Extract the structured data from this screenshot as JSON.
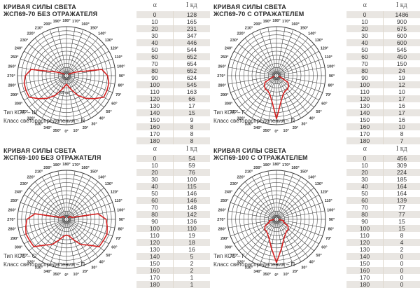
{
  "charts": [
    {
      "title_line1": "КРИВАЯ СИЛЫ СВЕТА",
      "title_line2": "ЖСП69-70 БЕЗ ОТРАЖАТЕЛЯ",
      "kss_type": "Тип КСС – Ш",
      "light_class": "Класс светораспределения – Н",
      "col_alpha": "α",
      "col_intensity": "I кд",
      "scale_label": "650 кд",
      "curve_color": "#d42020",
      "rows": [
        [
          0,
          128
        ],
        [
          10,
          165
        ],
        [
          20,
          231
        ],
        [
          30,
          347
        ],
        [
          40,
          446
        ],
        [
          50,
          544
        ],
        [
          60,
          652
        ],
        [
          70,
          654
        ],
        [
          80,
          652
        ],
        [
          90,
          624
        ],
        [
          100,
          545
        ],
        [
          110,
          163
        ],
        [
          120,
          66
        ],
        [
          130,
          17
        ],
        [
          140,
          15
        ],
        [
          150,
          9
        ],
        [
          160,
          8
        ],
        [
          170,
          8
        ],
        [
          180,
          8
        ]
      ]
    },
    {
      "title_line1": "КРИВАЯ СИЛЫ СВЕТА",
      "title_line2": "ЖСП69-70 С ОТРАЖАТЕЛЕМ",
      "kss_type": "Тип КСС – Г",
      "light_class": "Класс светораспределения – П",
      "col_alpha": "α",
      "col_intensity": "I кд",
      "scale_label": "",
      "curve_color": "#d42020",
      "rows": [
        [
          0,
          1486
        ],
        [
          10,
          900
        ],
        [
          20,
          675
        ],
        [
          30,
          600
        ],
        [
          40,
          600
        ],
        [
          50,
          545
        ],
        [
          60,
          450
        ],
        [
          70,
          150
        ],
        [
          80,
          24
        ],
        [
          90,
          19
        ],
        [
          100,
          12
        ],
        [
          110,
          10
        ],
        [
          120,
          17
        ],
        [
          130,
          16
        ],
        [
          140,
          17
        ],
        [
          150,
          16
        ],
        [
          160,
          10
        ],
        [
          170,
          8
        ],
        [
          180,
          7
        ]
      ]
    },
    {
      "title_line1": "КРИВАЯ СИЛЫ СВЕТА",
      "title_line2": "ЖСП69-100 БЕЗ ОТРАЖАТЕЛЯ",
      "kss_type": "Тип КСС – С",
      "light_class": "Класс светораспределения – П",
      "col_alpha": "α",
      "col_intensity": "I кд",
      "scale_label": "",
      "curve_color": "#d42020",
      "rows": [
        [
          0,
          54
        ],
        [
          10,
          59
        ],
        [
          20,
          76
        ],
        [
          30,
          100
        ],
        [
          40,
          115
        ],
        [
          50,
          146
        ],
        [
          60,
          146
        ],
        [
          70,
          148
        ],
        [
          80,
          142
        ],
        [
          90,
          136
        ],
        [
          100,
          110
        ],
        [
          110,
          19
        ],
        [
          120,
          18
        ],
        [
          130,
          16
        ],
        [
          140,
          5
        ],
        [
          150,
          2
        ],
        [
          160,
          2
        ],
        [
          170,
          1
        ],
        [
          180,
          1
        ]
      ]
    },
    {
      "title_line1": "КРИВАЯ СИЛЫ СВЕТА",
      "title_line2": "ЖСП69-100 С ОТРАЖАТЕЛЕМ",
      "kss_type": "Тип КСС – Г",
      "light_class": "Класс светораспределения – П",
      "col_alpha": "α",
      "col_intensity": "I кд",
      "scale_label": "",
      "curve_color": "#d42020",
      "rows": [
        [
          0,
          456
        ],
        [
          10,
          309
        ],
        [
          20,
          224
        ],
        [
          30,
          185
        ],
        [
          40,
          164
        ],
        [
          50,
          164
        ],
        [
          60,
          139
        ],
        [
          70,
          77
        ],
        [
          80,
          77
        ],
        [
          90,
          15
        ],
        [
          100,
          15
        ],
        [
          110,
          8
        ],
        [
          120,
          4
        ],
        [
          130,
          2
        ],
        [
          140,
          0
        ],
        [
          150,
          0
        ],
        [
          160,
          0
        ],
        [
          170,
          0
        ],
        [
          180,
          0
        ]
      ]
    }
  ],
  "polar_angle_labels": [
    "0°",
    "10°",
    "20°",
    "30°",
    "40°",
    "50°",
    "60°",
    "70°",
    "80°",
    "90°",
    "100°",
    "110°",
    "120°",
    "130°",
    "140°",
    "150°",
    "160°",
    "170°",
    "180°",
    "190°",
    "200°",
    "210°",
    "220°",
    "230°",
    "240°",
    "250°",
    "260°",
    "270°",
    "280°",
    "290°",
    "300°",
    "310°",
    "320°",
    "330°",
    "340°",
    "350°"
  ],
  "chart_data": [
    {
      "type": "polar-line",
      "title": "КРИВАЯ СИЛЫ СВЕТА ЖСП69-70 БЕЗ ОТРАЖАТЕЛЯ",
      "x": [
        0,
        10,
        20,
        30,
        40,
        50,
        60,
        70,
        80,
        90,
        100,
        110,
        120,
        130,
        140,
        150,
        160,
        170,
        180
      ],
      "values": [
        128,
        165,
        231,
        347,
        446,
        544,
        652,
        654,
        652,
        624,
        545,
        163,
        66,
        17,
        15,
        9,
        8,
        8,
        8
      ],
      "xlabel": "α",
      "ylabel": "I кд",
      "grid": true
    },
    {
      "type": "polar-line",
      "title": "КРИВАЯ СИЛЫ СВЕТА ЖСП69-70 С ОТРАЖАТЕЛЕМ",
      "x": [
        0,
        10,
        20,
        30,
        40,
        50,
        60,
        70,
        80,
        90,
        100,
        110,
        120,
        130,
        140,
        150,
        160,
        170,
        180
      ],
      "values": [
        1486,
        900,
        675,
        600,
        600,
        545,
        450,
        150,
        24,
        19,
        12,
        10,
        17,
        16,
        17,
        16,
        10,
        8,
        7
      ],
      "xlabel": "α",
      "ylabel": "I кд",
      "grid": true
    },
    {
      "type": "polar-line",
      "title": "КРИВАЯ СИЛЫ СВЕТА ЖСП69-100 БЕЗ ОТРАЖАТЕЛЯ",
      "x": [
        0,
        10,
        20,
        30,
        40,
        50,
        60,
        70,
        80,
        90,
        100,
        110,
        120,
        130,
        140,
        150,
        160,
        170,
        180
      ],
      "values": [
        54,
        59,
        76,
        100,
        115,
        146,
        146,
        148,
        142,
        136,
        110,
        19,
        18,
        16,
        5,
        2,
        2,
        1,
        1
      ],
      "xlabel": "α",
      "ylabel": "I кд",
      "grid": true
    },
    {
      "type": "polar-line",
      "title": "КРИВАЯ СИЛЫ СВЕТА ЖСП69-100 С ОТРАЖАТЕЛЕМ",
      "x": [
        0,
        10,
        20,
        30,
        40,
        50,
        60,
        70,
        80,
        90,
        100,
        110,
        120,
        130,
        140,
        150,
        160,
        170,
        180
      ],
      "values": [
        456,
        309,
        224,
        185,
        164,
        164,
        139,
        77,
        77,
        15,
        15,
        8,
        4,
        2,
        0,
        0,
        0,
        0,
        0
      ],
      "xlabel": "α",
      "ylabel": "I кд",
      "grid": true
    }
  ]
}
